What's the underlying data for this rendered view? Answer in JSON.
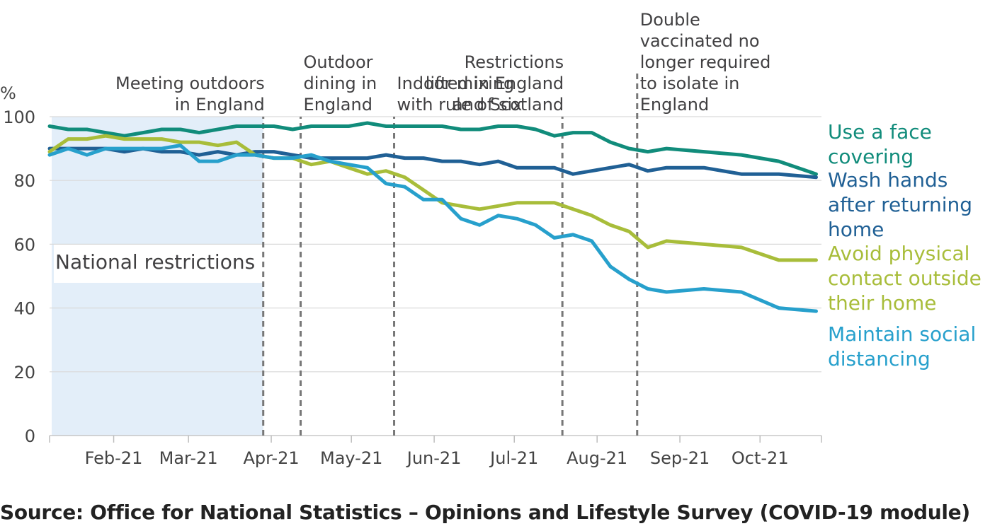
{
  "chart_data": {
    "type": "line",
    "y_unit": "%",
    "ylim": [
      0,
      100
    ],
    "y_ticks": [
      0,
      20,
      40,
      60,
      80,
      100
    ],
    "xlim": [
      "2021-01-08",
      "2021-10-24"
    ],
    "x_ticks": [
      {
        "date": "2021-02-01",
        "label": "Feb-21"
      },
      {
        "date": "2021-03-01",
        "label": "Mar-21"
      },
      {
        "date": "2021-04-01",
        "label": "Apr-21"
      },
      {
        "date": "2021-05-01",
        "label": "May-21"
      },
      {
        "date": "2021-06-01",
        "label": "Jun-21"
      },
      {
        "date": "2021-07-01",
        "label": "Jul-21"
      },
      {
        "date": "2021-08-01",
        "label": "Aug-21"
      },
      {
        "date": "2021-09-01",
        "label": "Sep-21"
      },
      {
        "date": "2021-10-01",
        "label": "Oct-21"
      }
    ],
    "grid": "horizontal",
    "shaded_period": {
      "label": "National restrictions",
      "start": "2021-01-08",
      "end": "2021-03-29",
      "color": "#e3eef9"
    },
    "events": [
      {
        "date": "2021-03-29",
        "label": [
          "Meeting outdoors",
          "in England"
        ],
        "align": "right"
      },
      {
        "date": "2021-04-12",
        "label": [
          "Outdoor",
          "dining in",
          "England"
        ],
        "align": "left"
      },
      {
        "date": "2021-05-17",
        "label": [
          "Indoor mixing",
          "with rule of six"
        ],
        "align": "left"
      },
      {
        "date": "2021-07-19",
        "label": [
          "Restrictions",
          "lifted in England",
          "and Scotland"
        ],
        "align": "right"
      },
      {
        "date": "2021-08-16",
        "label": [
          "Double",
          "vaccinated no",
          "longer required",
          "to isolate in",
          "England"
        ],
        "align": "left"
      }
    ],
    "series": [
      {
        "name": [
          "Use a face",
          "covering"
        ],
        "color": "#118c7b",
        "points": [
          [
            "2021-01-08",
            97
          ],
          [
            "2021-01-15",
            96
          ],
          [
            "2021-01-22",
            96
          ],
          [
            "2021-01-29",
            95
          ],
          [
            "2021-02-05",
            94
          ],
          [
            "2021-02-12",
            95
          ],
          [
            "2021-02-19",
            96
          ],
          [
            "2021-02-26",
            96
          ],
          [
            "2021-03-05",
            95
          ],
          [
            "2021-03-12",
            96
          ],
          [
            "2021-03-19",
            97
          ],
          [
            "2021-03-26",
            97
          ],
          [
            "2021-04-02",
            97
          ],
          [
            "2021-04-09",
            96
          ],
          [
            "2021-04-16",
            97
          ],
          [
            "2021-04-23",
            97
          ],
          [
            "2021-04-30",
            97
          ],
          [
            "2021-05-07",
            98
          ],
          [
            "2021-05-14",
            97
          ],
          [
            "2021-05-21",
            97
          ],
          [
            "2021-05-28",
            97
          ],
          [
            "2021-06-04",
            97
          ],
          [
            "2021-06-11",
            96
          ],
          [
            "2021-06-18",
            96
          ],
          [
            "2021-06-25",
            97
          ],
          [
            "2021-07-02",
            97
          ],
          [
            "2021-07-09",
            96
          ],
          [
            "2021-07-16",
            94
          ],
          [
            "2021-07-23",
            95
          ],
          [
            "2021-07-30",
            95
          ],
          [
            "2021-08-06",
            92
          ],
          [
            "2021-08-13",
            90
          ],
          [
            "2021-08-20",
            89
          ],
          [
            "2021-08-27",
            90
          ],
          [
            "2021-09-24",
            88
          ],
          [
            "2021-10-08",
            86
          ],
          [
            "2021-10-22",
            82
          ]
        ]
      },
      {
        "name": [
          "Wash hands",
          "after returning",
          "home"
        ],
        "color": "#206095",
        "points": [
          [
            "2021-01-08",
            90
          ],
          [
            "2021-01-15",
            90
          ],
          [
            "2021-01-22",
            90
          ],
          [
            "2021-01-29",
            90
          ],
          [
            "2021-02-05",
            89
          ],
          [
            "2021-02-12",
            90
          ],
          [
            "2021-02-19",
            89
          ],
          [
            "2021-02-26",
            89
          ],
          [
            "2021-03-05",
            88
          ],
          [
            "2021-03-12",
            89
          ],
          [
            "2021-03-19",
            88
          ],
          [
            "2021-03-26",
            89
          ],
          [
            "2021-04-02",
            89
          ],
          [
            "2021-04-09",
            88
          ],
          [
            "2021-04-16",
            87
          ],
          [
            "2021-04-23",
            87
          ],
          [
            "2021-04-30",
            87
          ],
          [
            "2021-05-07",
            87
          ],
          [
            "2021-05-14",
            88
          ],
          [
            "2021-05-21",
            87
          ],
          [
            "2021-05-28",
            87
          ],
          [
            "2021-06-04",
            86
          ],
          [
            "2021-06-11",
            86
          ],
          [
            "2021-06-18",
            85
          ],
          [
            "2021-06-25",
            86
          ],
          [
            "2021-07-02",
            84
          ],
          [
            "2021-07-09",
            84
          ],
          [
            "2021-07-16",
            84
          ],
          [
            "2021-07-23",
            82
          ],
          [
            "2021-07-30",
            83
          ],
          [
            "2021-08-06",
            84
          ],
          [
            "2021-08-13",
            85
          ],
          [
            "2021-08-20",
            83
          ],
          [
            "2021-08-27",
            84
          ],
          [
            "2021-09-10",
            84
          ],
          [
            "2021-09-24",
            82
          ],
          [
            "2021-10-08",
            82
          ],
          [
            "2021-10-22",
            81
          ]
        ]
      },
      {
        "name": [
          "Avoid physical",
          "contact outside",
          "their home"
        ],
        "color": "#a8bd3a",
        "points": [
          [
            "2021-01-08",
            89
          ],
          [
            "2021-01-15",
            93
          ],
          [
            "2021-01-22",
            93
          ],
          [
            "2021-01-29",
            94
          ],
          [
            "2021-02-05",
            93
          ],
          [
            "2021-02-12",
            93
          ],
          [
            "2021-02-19",
            93
          ],
          [
            "2021-02-26",
            92
          ],
          [
            "2021-03-05",
            92
          ],
          [
            "2021-03-12",
            91
          ],
          [
            "2021-03-19",
            92
          ],
          [
            "2021-03-26",
            88
          ],
          [
            "2021-04-02",
            87
          ],
          [
            "2021-04-09",
            87
          ],
          [
            "2021-04-16",
            85
          ],
          [
            "2021-04-23",
            86
          ],
          [
            "2021-04-30",
            84
          ],
          [
            "2021-05-07",
            82
          ],
          [
            "2021-05-14",
            83
          ],
          [
            "2021-05-21",
            81
          ],
          [
            "2021-05-28",
            77
          ],
          [
            "2021-06-04",
            73
          ],
          [
            "2021-06-11",
            72
          ],
          [
            "2021-06-18",
            71
          ],
          [
            "2021-06-25",
            72
          ],
          [
            "2021-07-02",
            73
          ],
          [
            "2021-07-09",
            73
          ],
          [
            "2021-07-16",
            73
          ],
          [
            "2021-07-23",
            71
          ],
          [
            "2021-07-30",
            69
          ],
          [
            "2021-08-06",
            66
          ],
          [
            "2021-08-13",
            64
          ],
          [
            "2021-08-20",
            59
          ],
          [
            "2021-08-27",
            61
          ],
          [
            "2021-09-24",
            59
          ],
          [
            "2021-10-08",
            55
          ],
          [
            "2021-10-22",
            55
          ]
        ]
      },
      {
        "name": [
          "Maintain social",
          "distancing"
        ],
        "color": "#27a0cc",
        "points": [
          [
            "2021-01-08",
            88
          ],
          [
            "2021-01-15",
            90
          ],
          [
            "2021-01-22",
            88
          ],
          [
            "2021-01-29",
            90
          ],
          [
            "2021-02-05",
            90
          ],
          [
            "2021-02-12",
            90
          ],
          [
            "2021-02-19",
            90
          ],
          [
            "2021-02-26",
            91
          ],
          [
            "2021-03-05",
            86
          ],
          [
            "2021-03-12",
            86
          ],
          [
            "2021-03-19",
            88
          ],
          [
            "2021-03-26",
            88
          ],
          [
            "2021-04-02",
            87
          ],
          [
            "2021-04-09",
            87
          ],
          [
            "2021-04-16",
            88
          ],
          [
            "2021-04-23",
            86
          ],
          [
            "2021-04-30",
            85
          ],
          [
            "2021-05-07",
            84
          ],
          [
            "2021-05-14",
            79
          ],
          [
            "2021-05-21",
            78
          ],
          [
            "2021-05-28",
            74
          ],
          [
            "2021-06-04",
            74
          ],
          [
            "2021-06-11",
            68
          ],
          [
            "2021-06-18",
            66
          ],
          [
            "2021-06-25",
            69
          ],
          [
            "2021-07-02",
            68
          ],
          [
            "2021-07-09",
            66
          ],
          [
            "2021-07-16",
            62
          ],
          [
            "2021-07-23",
            63
          ],
          [
            "2021-07-30",
            61
          ],
          [
            "2021-08-06",
            53
          ],
          [
            "2021-08-13",
            49
          ],
          [
            "2021-08-20",
            46
          ],
          [
            "2021-08-27",
            45
          ],
          [
            "2021-09-10",
            46
          ],
          [
            "2021-09-24",
            45
          ],
          [
            "2021-10-08",
            40
          ],
          [
            "2021-10-22",
            39
          ]
        ]
      }
    ]
  },
  "source": "Source: Office for National Statistics – Opinions and Lifestyle Survey (COVID-19 module)"
}
